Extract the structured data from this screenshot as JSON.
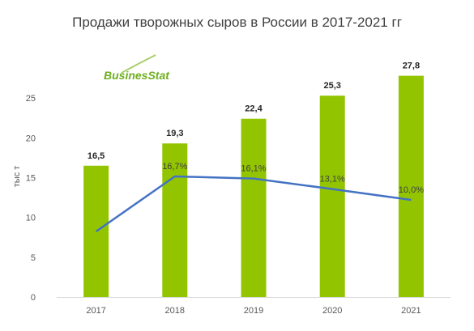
{
  "chart_data": {
    "type": "bar",
    "title": "Продажи творожных сыров в России в 2017-2021 гг",
    "ylabel": "тыс т",
    "xlabel": "",
    "categories": [
      "2017",
      "2018",
      "2019",
      "2020",
      "2021"
    ],
    "series": [
      {
        "type": "bar",
        "values": [
          16.5,
          19.3,
          22.4,
          25.3,
          27.8
        ],
        "labels": [
          "16,5",
          "19,3",
          "22,4",
          "25,3",
          "27,8"
        ],
        "color": "#92c500"
      },
      {
        "type": "line",
        "axis": "secondary",
        "values": [
          null,
          16.7,
          16.1,
          13.1,
          10.0
        ],
        "labels": [
          "",
          "16,7%",
          "16,1%",
          "13,1%",
          "10,0%"
        ],
        "color": "#4472c4"
      }
    ],
    "ylim": [
      0,
      30
    ],
    "yticks": [
      0,
      5,
      10,
      15,
      20,
      25
    ],
    "grid": false,
    "legend": "none"
  },
  "logo": {
    "text": "BusinesStat",
    "color": "#6fae1f"
  }
}
